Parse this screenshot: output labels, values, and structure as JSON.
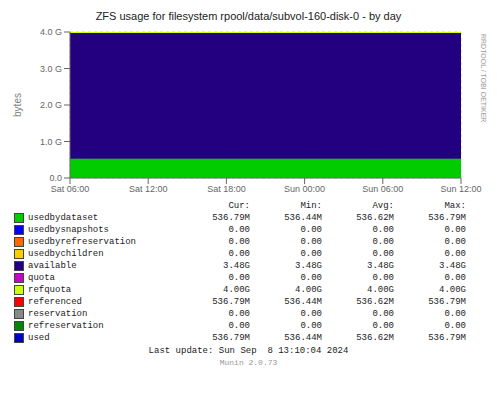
{
  "chart_data": {
    "type": "area",
    "title": "ZFS usage for filesystem rpool/data/subvol-160-disk-0  -  by day",
    "ylabel": "bytes",
    "categories": [
      "Sat 06:00",
      "Sat 12:00",
      "Sat 18:00",
      "Sun 00:00",
      "Sun 06:00",
      "Sun 12:00"
    ],
    "series": [
      {
        "name": "usedbydataset",
        "type": "area",
        "color": "#00cc00",
        "values": [
          562741248,
          562741248,
          562741248,
          562741248,
          562741248,
          562741248
        ]
      },
      {
        "name": "available",
        "type": "area",
        "color": "#220080",
        "values": [
          3732226048,
          3732226048,
          3732226048,
          3732226048,
          3732226048,
          3732226048
        ]
      },
      {
        "name": "refquota",
        "type": "line",
        "color": "#ccff00",
        "values": [
          4294967296,
          4294967296,
          4294967296,
          4294967296,
          4294967296,
          4294967296
        ]
      }
    ],
    "stacked": true,
    "grid": true,
    "ylim": [
      0,
      4294967296
    ],
    "yticks": [
      {
        "value": 0,
        "label": "0.0"
      },
      {
        "value": 1073741824,
        "label": "1.0 G"
      },
      {
        "value": 2147483648,
        "label": "2.0 G"
      },
      {
        "value": 3221225472,
        "label": "3.0 G"
      },
      {
        "value": 4294967296,
        "label": "4.0 G"
      }
    ],
    "legend_table": {
      "headers": [
        "Cur:",
        "Min:",
        "Avg:",
        "Max:"
      ],
      "rows": [
        {
          "name": "usedbydataset",
          "color": "#00cc00",
          "cells": [
            "536.79M",
            "536.44M",
            "536.62M",
            "536.79M"
          ]
        },
        {
          "name": "usedbysnapshots",
          "color": "#0000ff",
          "cells": [
            "0.00",
            "0.00",
            "0.00",
            "0.00"
          ]
        },
        {
          "name": "usedbyrefreservation",
          "color": "#ff6600",
          "cells": [
            "0.00",
            "0.00",
            "0.00",
            "0.00"
          ]
        },
        {
          "name": "usedbychildren",
          "color": "#ffcc00",
          "cells": [
            "0.00",
            "0.00",
            "0.00",
            "0.00"
          ]
        },
        {
          "name": "available",
          "color": "#220080",
          "cells": [
            "3.48G",
            "3.48G",
            "3.48G",
            "3.48G"
          ]
        },
        {
          "name": "quota",
          "color": "#cc00cc",
          "cells": [
            "0.00",
            "0.00",
            "0.00",
            "0.00"
          ]
        },
        {
          "name": "refquota",
          "color": "#ccff00",
          "cells": [
            "4.00G",
            "4.00G",
            "4.00G",
            "4.00G"
          ]
        },
        {
          "name": "referenced",
          "color": "#ff0000",
          "cells": [
            "536.79M",
            "536.44M",
            "536.62M",
            "536.79M"
          ]
        },
        {
          "name": "reservation",
          "color": "#888888",
          "cells": [
            "0.00",
            "0.00",
            "0.00",
            "0.00"
          ]
        },
        {
          "name": "refreservation",
          "color": "#008800",
          "cells": [
            "0.00",
            "0.00",
            "0.00",
            "0.00"
          ]
        },
        {
          "name": "used",
          "color": "#0000cc",
          "cells": [
            "536.79M",
            "536.44M",
            "536.62M",
            "536.79M"
          ]
        }
      ]
    },
    "last_update": "Last update: Sun Sep  8 13:10:04 2024",
    "munin_version": "Munin 2.0.73",
    "rrdtool_text": "RRDTOOL / TOBI OETIKER"
  }
}
